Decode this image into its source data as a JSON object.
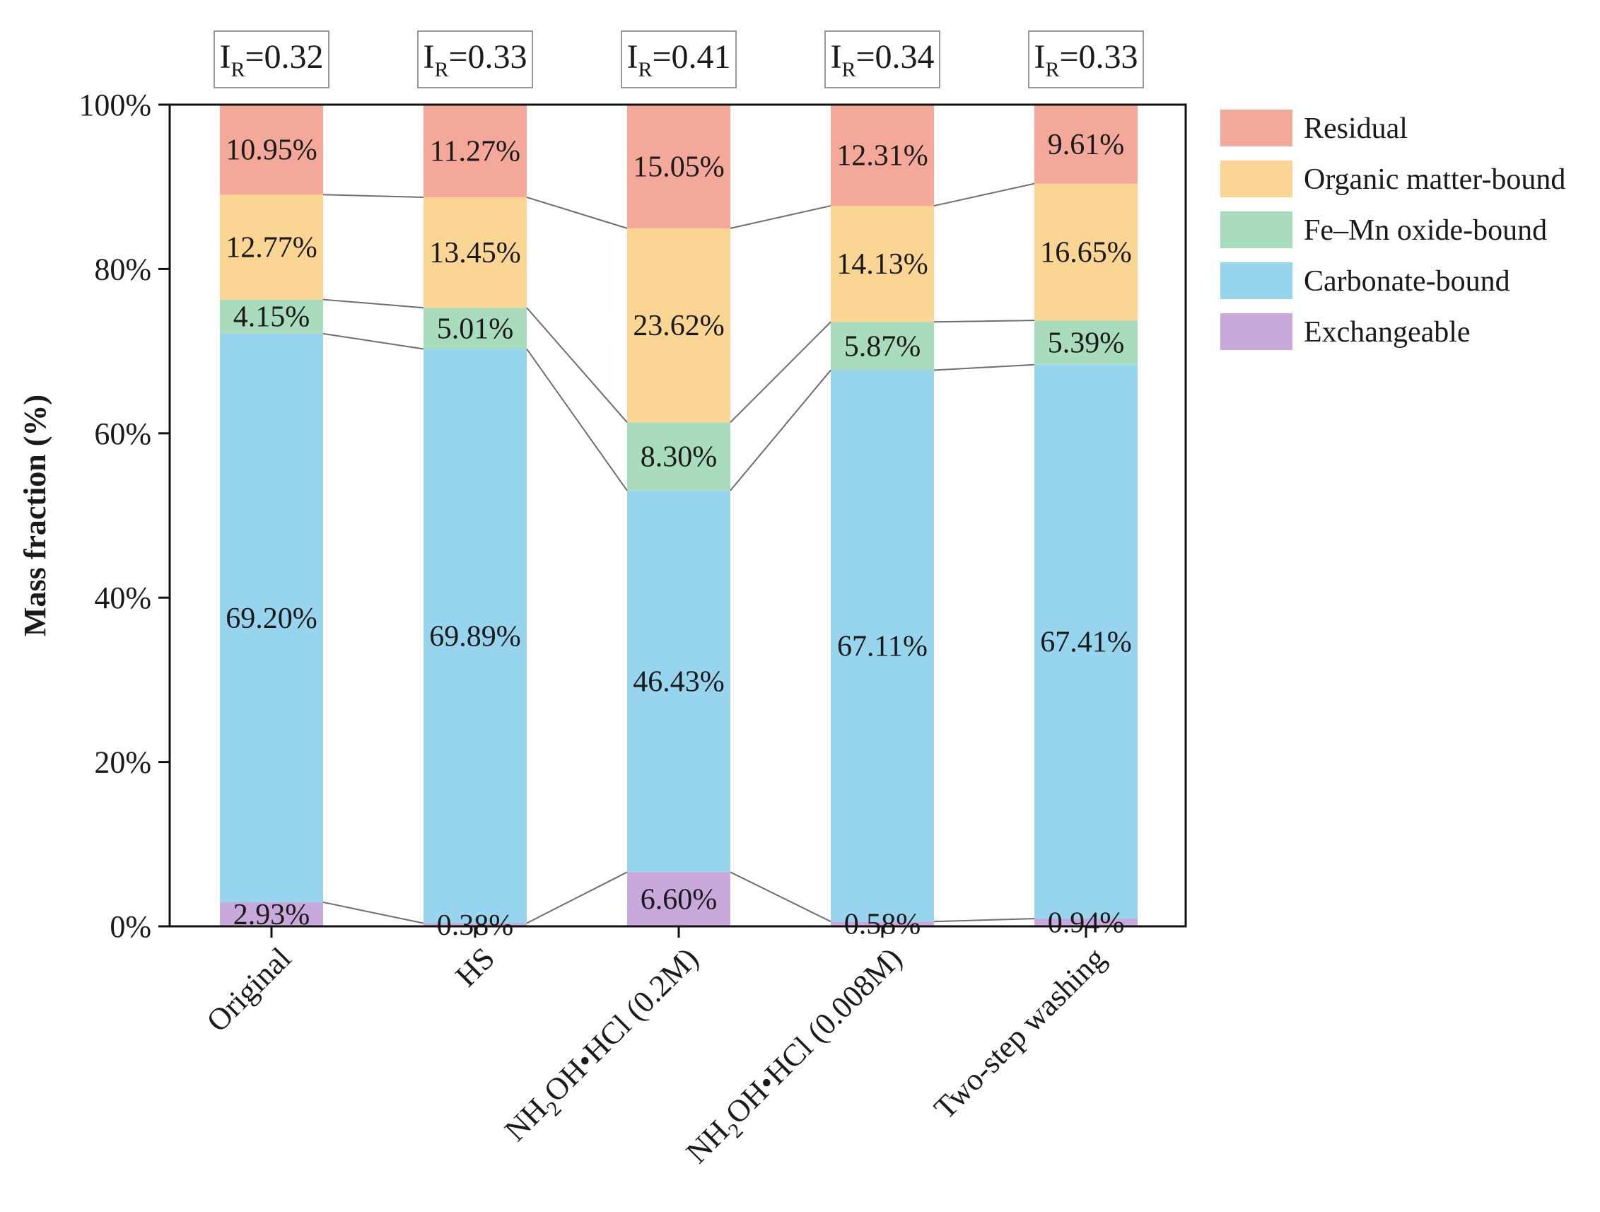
{
  "chart_data": {
    "type": "bar",
    "stacked": true,
    "ylabel": "Mass fraction (%)",
    "ylim": [
      0,
      100
    ],
    "yticks": [
      "0%",
      "20%",
      "40%",
      "60%",
      "80%",
      "100%"
    ],
    "categories": [
      {
        "pre": "Original",
        "sub": "",
        "post": ""
      },
      {
        "pre": "HS",
        "sub": "",
        "post": ""
      },
      {
        "pre": "NH",
        "sub": "2",
        "post": "OH•HCl (0.2M)"
      },
      {
        "pre": "NH",
        "sub": "2",
        "post": "OH•HCl (0.008M)"
      },
      {
        "pre": "Two-step washing",
        "sub": "",
        "post": ""
      }
    ],
    "top_annotations": [
      {
        "pre": "I",
        "sub": "R",
        "post": "=0.32"
      },
      {
        "pre": "I",
        "sub": "R",
        "post": "=0.33"
      },
      {
        "pre": "I",
        "sub": "R",
        "post": "=0.41"
      },
      {
        "pre": "I",
        "sub": "R",
        "post": "=0.34"
      },
      {
        "pre": "I",
        "sub": "R",
        "post": "=0.33"
      }
    ],
    "series": [
      {
        "name": "Exchangeable",
        "color": "#c9a8dc",
        "values": [
          2.93,
          0.38,
          6.6,
          0.58,
          0.94
        ],
        "labels": [
          "2.93%",
          "0.38%",
          "6.60%",
          "0.58%",
          "0.94%"
        ]
      },
      {
        "name": "Carbonate-bound",
        "color": "#97d5ef",
        "values": [
          69.2,
          69.89,
          46.43,
          67.11,
          67.41
        ],
        "labels": [
          "69.20%",
          "69.89%",
          "46.43%",
          "67.11%",
          "67.41%"
        ]
      },
      {
        "name": "Fe–Mn oxide-bound",
        "color": "#a8dcbc",
        "values": [
          4.15,
          5.01,
          8.3,
          5.87,
          5.39
        ],
        "labels": [
          "4.15%",
          "5.01%",
          "8.30%",
          "5.87%",
          "5.39%"
        ]
      },
      {
        "name": "Organic matter-bound",
        "color": "#fbd594",
        "values": [
          12.77,
          13.45,
          23.62,
          14.13,
          16.65
        ],
        "labels": [
          "12.77%",
          "13.45%",
          "23.62%",
          "14.13%",
          "16.65%"
        ]
      },
      {
        "name": "Residual",
        "color": "#f3a89a",
        "values": [
          10.95,
          11.27,
          15.05,
          12.31,
          9.61
        ],
        "labels": [
          "10.95%",
          "11.27%",
          "15.05%",
          "12.31%",
          "9.61%"
        ]
      }
    ],
    "legend_order": [
      "Residual",
      "Organic matter-bound",
      "Fe–Mn oxide-bound",
      "Carbonate-bound",
      "Exchangeable"
    ],
    "legend_position": "right",
    "connector_lines": true,
    "grid": false
  }
}
